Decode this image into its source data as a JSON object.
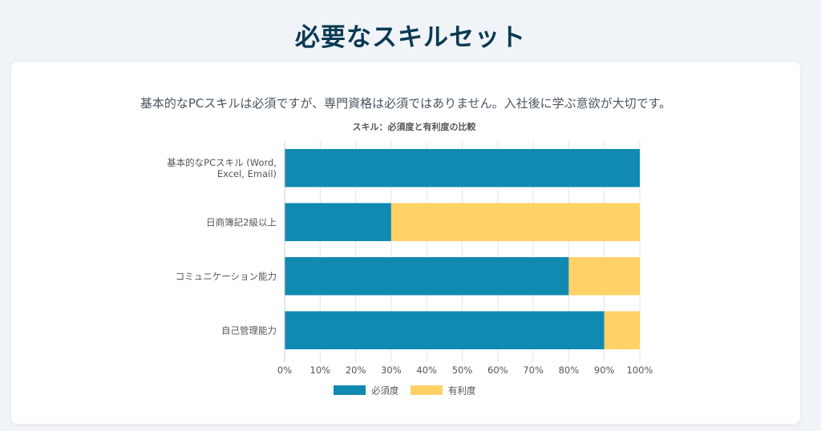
{
  "page": {
    "title": "必要なスキルセット",
    "intro": "基本的なPCスキルは必須ですが、専門資格は必須ではありません。入社後に学ぶ意欲が大切です。"
  },
  "colors": {
    "page_background": "#f0f3f8",
    "title": "#0b3a53",
    "required": "#118ab2",
    "beneficial": "#ffd166",
    "grid": "#e6e6e6",
    "text": "#555555"
  },
  "chart_data": {
    "type": "bar",
    "orientation": "horizontal",
    "stacked": true,
    "title": "スキル：必須度と有利度の比較",
    "categories": [
      [
        "基本的なPCスキル (Word,",
        "Excel, Email)"
      ],
      [
        "日商簿記2級以上"
      ],
      [
        "コミュニケーション能力"
      ],
      [
        "自己管理能力"
      ]
    ],
    "series": [
      {
        "name": "必須度",
        "color": "#118ab2",
        "values": [
          100,
          30,
          80,
          90
        ]
      },
      {
        "name": "有利度",
        "color": "#ffd166",
        "values": [
          0,
          70,
          20,
          10
        ]
      }
    ],
    "xlim": [
      0,
      100
    ],
    "x_ticks": [
      "0%",
      "10%",
      "20%",
      "30%",
      "40%",
      "50%",
      "60%",
      "70%",
      "80%",
      "90%",
      "100%"
    ],
    "grid": true,
    "legend_position": "bottom"
  }
}
